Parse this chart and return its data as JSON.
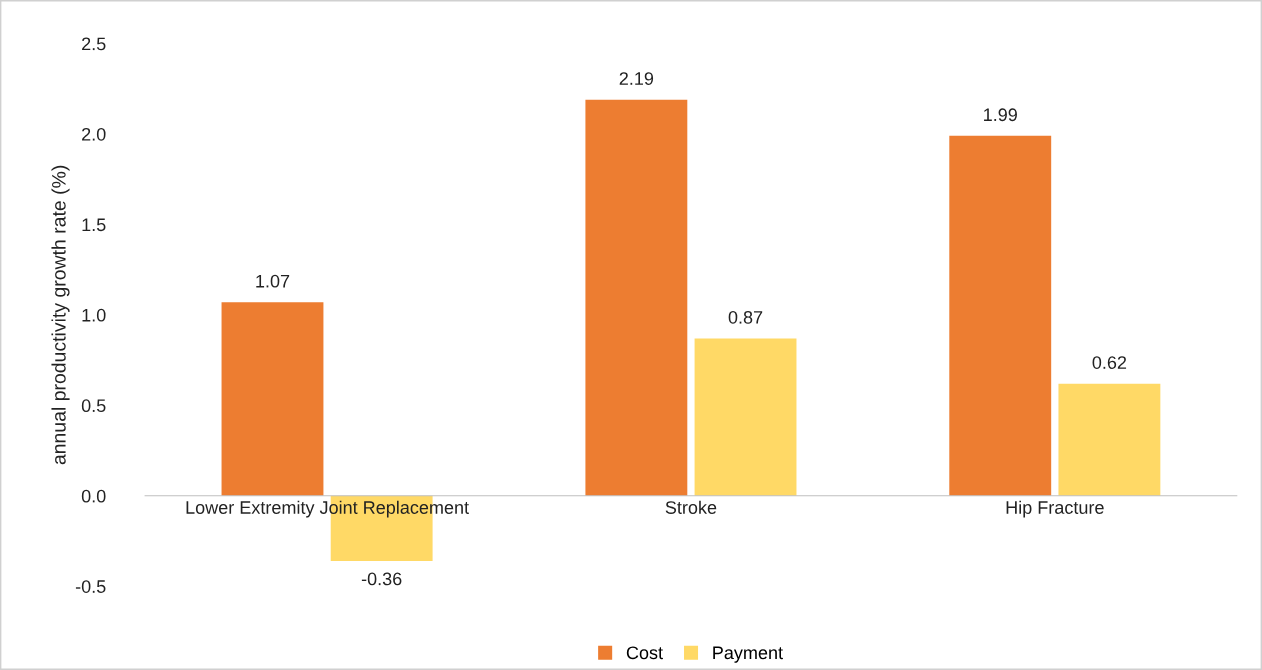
{
  "chart_data": {
    "type": "bar",
    "ylabel": "annual productivity growth rate (%)",
    "categories": [
      "Lower Extremity Joint Replacement",
      "Stroke",
      "Hip Fracture"
    ],
    "series": [
      {
        "name": "Cost",
        "color": "#ed7d31",
        "values": [
          1.07,
          2.19,
          1.99
        ]
      },
      {
        "name": "Payment",
        "color": "#ffd966",
        "values": [
          -0.36,
          0.87,
          0.62
        ]
      }
    ],
    "ylim": [
      -0.5,
      2.5
    ],
    "yticks": [
      {
        "value": -0.5,
        "label": "-0.5"
      },
      {
        "value": 0,
        "label": "0.0"
      },
      {
        "value": 0.5,
        "label": "0.5"
      },
      {
        "value": 1,
        "label": "1.0"
      },
      {
        "value": 1.5,
        "label": "1.5"
      },
      {
        "value": 2,
        "label": "2.0"
      },
      {
        "value": 2.5,
        "label": "2.5"
      }
    ],
    "data_labels": true,
    "grid": false,
    "legend": "bottom"
  }
}
